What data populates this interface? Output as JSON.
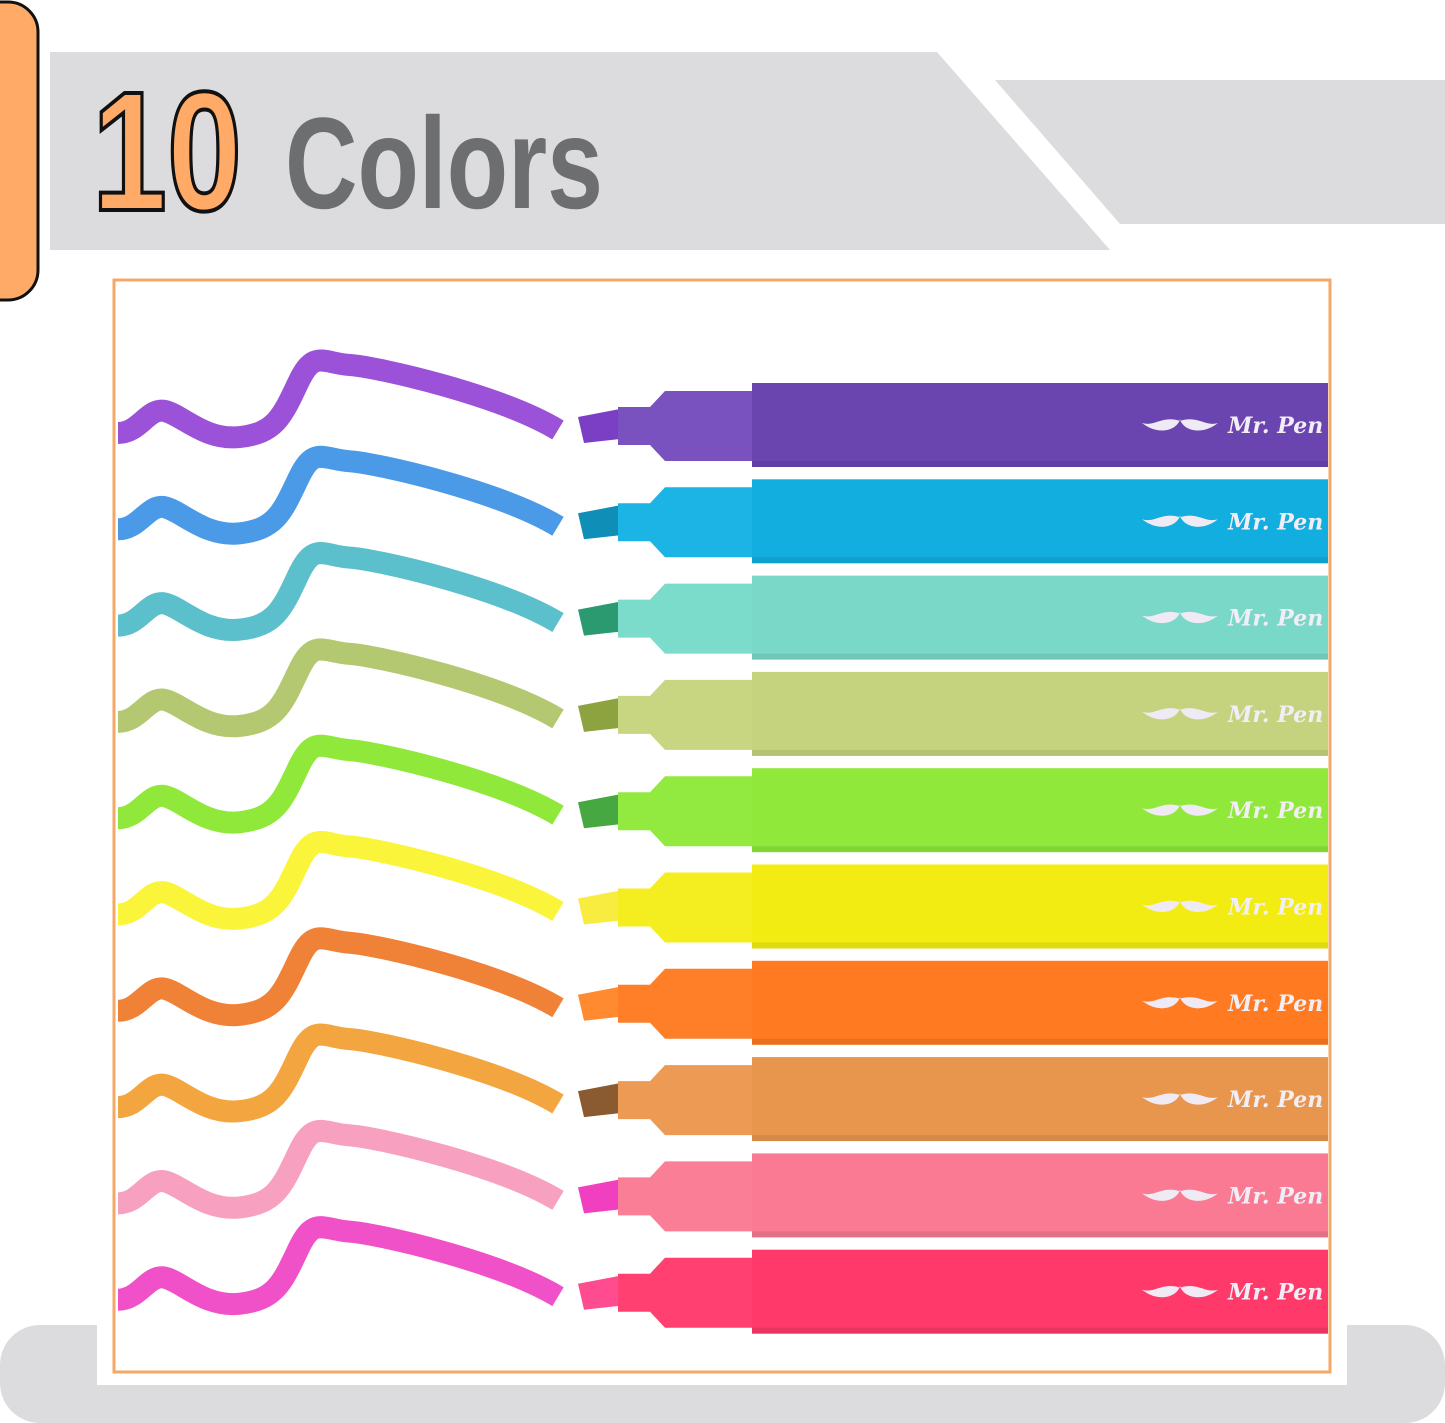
{
  "header": {
    "count": "10",
    "label": "Colors",
    "accent_color": "#ffaa66",
    "label_color": "#6d6e70",
    "banner_color": "#dcdcde"
  },
  "frame_color": "#f4a767",
  "brand": "Mr. Pen",
  "markers": [
    {
      "name": "purple",
      "body": "#6a45b0",
      "cap": "#7a52c0",
      "tip": "#7b3fc6",
      "swatch": "#9b52d8"
    },
    {
      "name": "sky-blue",
      "body": "#12aee0",
      "cap": "#1cb4e4",
      "tip": "#0f8fb8",
      "swatch": "#4a9ae8"
    },
    {
      "name": "turquoise",
      "body": "#7ad8c8",
      "cap": "#7cdccb",
      "tip": "#2b9a70",
      "swatch": "#5bbfcc"
    },
    {
      "name": "olive-green",
      "body": "#c5d37e",
      "cap": "#c8d682",
      "tip": "#8da340",
      "swatch": "#b3c870"
    },
    {
      "name": "lime-green",
      "body": "#8fe83a",
      "cap": "#92ea40",
      "tip": "#45a840",
      "swatch": "#8fe83a"
    },
    {
      "name": "yellow",
      "body": "#f2ec12",
      "cap": "#f4ee20",
      "tip": "#f8ec40",
      "swatch": "#faf53a"
    },
    {
      "name": "orange",
      "body": "#ff7a20",
      "cap": "#ff7e28",
      "tip": "#ff8a30",
      "swatch": "#f08238"
    },
    {
      "name": "tan",
      "body": "#e8964e",
      "cap": "#ec9a54",
      "tip": "#8a5a30",
      "swatch": "#f3a640"
    },
    {
      "name": "pink",
      "body": "#f97a92",
      "cap": "#fa7e96",
      "tip": "#f040c0",
      "swatch": "#f7a0c0"
    },
    {
      "name": "rose-red",
      "body": "#ff3a6a",
      "cap": "#ff4070",
      "tip": "#ff4c90",
      "swatch": "#f050c8"
    }
  ]
}
